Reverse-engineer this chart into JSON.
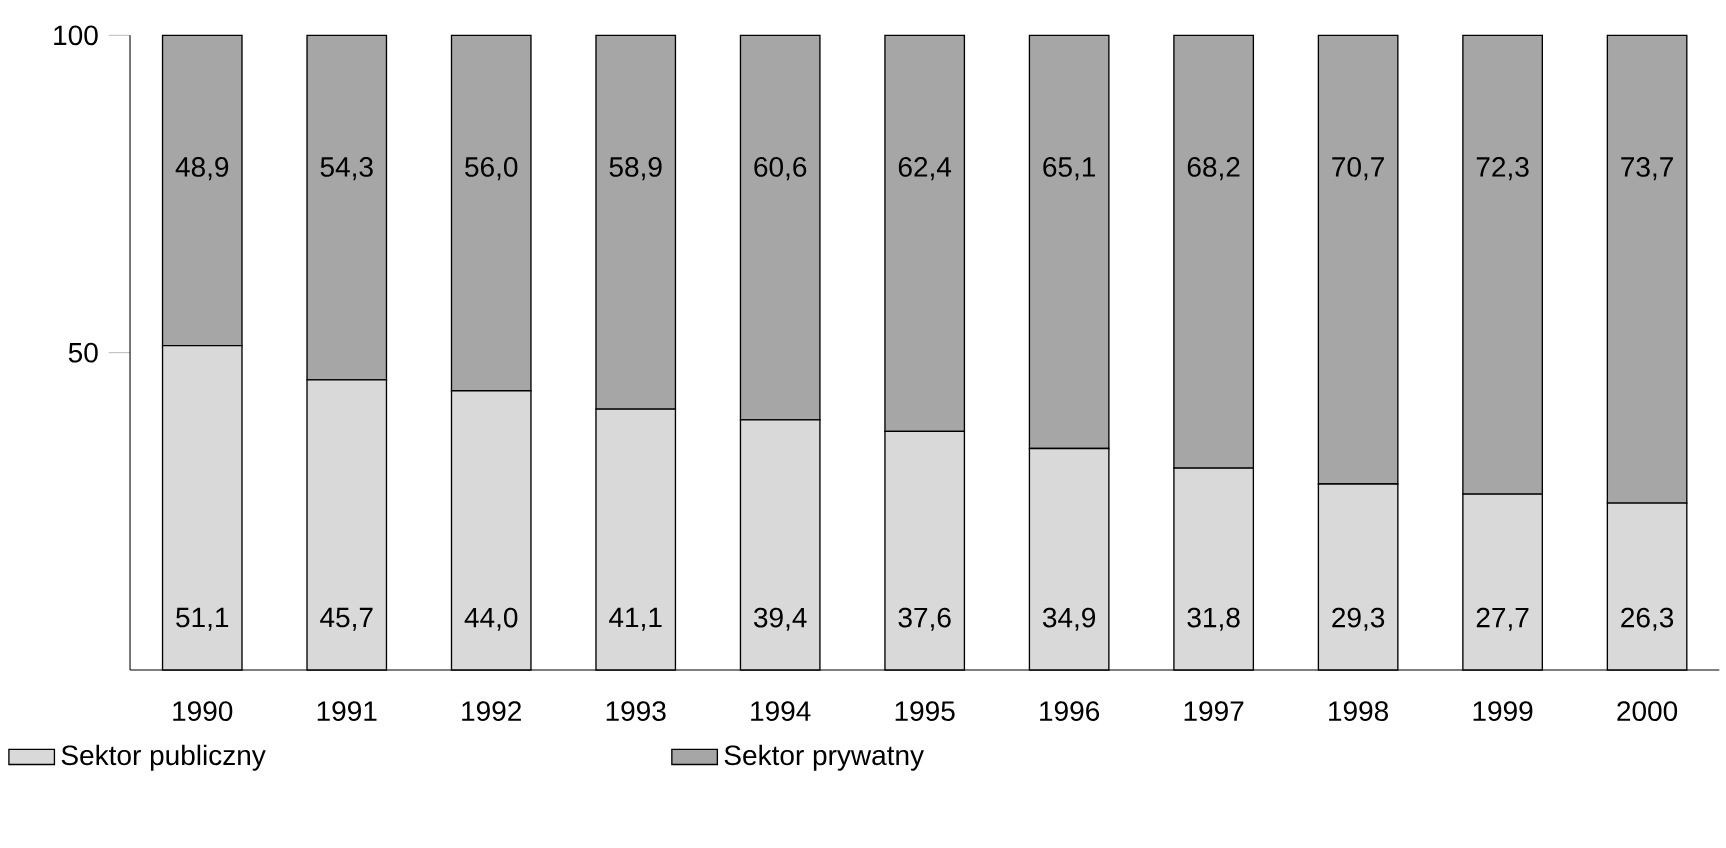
{
  "chart_data": {
    "type": "bar",
    "stacked": true,
    "categories": [
      "1990",
      "1991",
      "1992",
      "1993",
      "1994",
      "1995",
      "1996",
      "1997",
      "1998",
      "1999",
      "2000"
    ],
    "series": [
      {
        "name": "Sektor publiczny",
        "color": "#d9d9d9",
        "values": [
          51.1,
          45.7,
          44.0,
          41.1,
          39.4,
          37.6,
          34.9,
          31.8,
          29.3,
          27.7,
          26.3
        ],
        "value_labels": [
          "51,1",
          "45,7",
          "44,0",
          "41,1",
          "39,4",
          "37,6",
          "34,9",
          "31,8",
          "29,3",
          "27,7",
          "26,3"
        ]
      },
      {
        "name": "Sektor prywatny",
        "color": "#a6a6a6",
        "values": [
          48.9,
          54.3,
          56.0,
          58.9,
          60.6,
          62.4,
          65.1,
          68.2,
          70.7,
          72.3,
          73.7
        ],
        "value_labels": [
          "48,9",
          "54,3",
          "56,0",
          "58,9",
          "60,6",
          "62,4",
          "65,1",
          "68,2",
          "70,7",
          "72,3",
          "73,7"
        ]
      }
    ],
    "ylim": [
      0,
      100
    ],
    "yticks": [
      50,
      100
    ],
    "legend": "bottom left"
  }
}
